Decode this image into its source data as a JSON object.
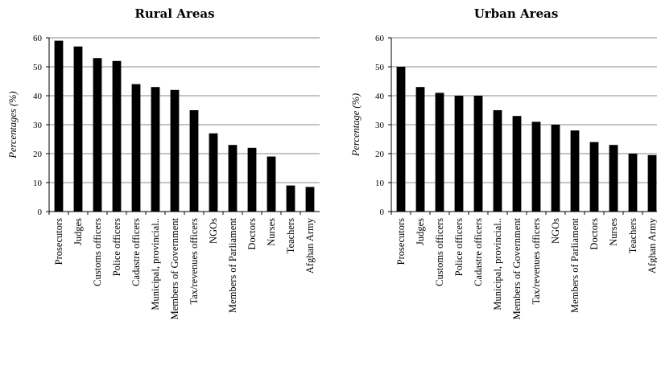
{
  "chart_data": [
    {
      "type": "bar",
      "title": "Rural Areas",
      "ylabel": "Percentages (%)",
      "xlabel": "",
      "ylim": [
        0,
        60
      ],
      "yticks": [
        "0",
        "10",
        "20",
        "30",
        "40",
        "50",
        "60"
      ],
      "grid": true,
      "categories": [
        "Prosecutors",
        "Judges",
        "Customs officers",
        "Police officers",
        "Cadastre officers",
        "Municipal, provincial..",
        "Members of Government",
        "Tax/revenues officers",
        "NGOs",
        "Members of Parliament",
        "Doctors",
        "Nurses",
        "Teachers",
        "Afghan Army"
      ],
      "values": [
        59,
        57,
        53,
        52,
        44,
        43,
        42,
        35,
        27,
        23,
        22,
        19,
        9,
        8.5
      ],
      "bar_color": "#000000"
    },
    {
      "type": "bar",
      "title": "Urban Areas",
      "ylabel": "Percentage (%)",
      "xlabel": "",
      "ylim": [
        0,
        60
      ],
      "yticks": [
        "0",
        "10",
        "20",
        "30",
        "40",
        "50",
        "60"
      ],
      "grid": true,
      "categories": [
        "Prosecutors",
        "Judges",
        "Customs officers",
        "Police officers",
        "Cadastre officers",
        "Municipal, provincial..",
        "Members of Government",
        "Tax/revenues officers",
        "NGOs",
        "Members of Parliament",
        "Doctors",
        "Nurses",
        "Teachers",
        "Afghan Army"
      ],
      "values": [
        50,
        43,
        41,
        40,
        40,
        35,
        33,
        31,
        30,
        28,
        24,
        23,
        20,
        19.5
      ],
      "bar_color": "#000000"
    }
  ]
}
